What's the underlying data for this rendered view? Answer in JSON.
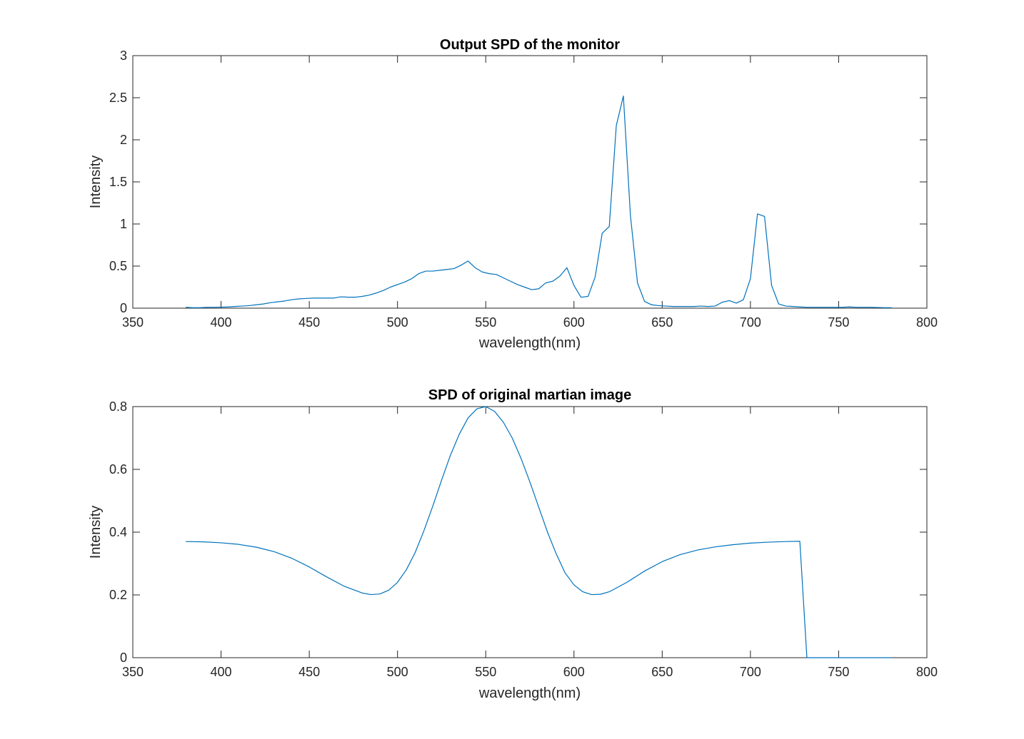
{
  "colors": {
    "series": "#0072BD",
    "axes": "#262626"
  },
  "chart_data": [
    {
      "type": "line",
      "title": "Output SPD of the monitor",
      "xlabel": "wavelength(nm)",
      "ylabel": "Intensity",
      "xlim": [
        350,
        800
      ],
      "ylim": [
        0,
        3
      ],
      "xticks": [
        350,
        400,
        450,
        500,
        550,
        600,
        650,
        700,
        750,
        800
      ],
      "yticks": [
        0,
        0.5,
        1,
        1.5,
        2,
        2.5,
        3
      ],
      "xtick_labels": [
        "350",
        "400",
        "450",
        "500",
        "550",
        "600",
        "650",
        "700",
        "750",
        "800"
      ],
      "ytick_labels": [
        "0",
        "0.5",
        "1",
        "1.5",
        "2",
        "2.5",
        "3"
      ],
      "grid": false,
      "series": [
        {
          "x": [
            380,
            384,
            388,
            392,
            396,
            400,
            404,
            408,
            412,
            416,
            420,
            424,
            428,
            432,
            436,
            440,
            444,
            448,
            452,
            456,
            460,
            464,
            468,
            472,
            476,
            480,
            484,
            488,
            492,
            496,
            500,
            504,
            508,
            512,
            516,
            520,
            524,
            528,
            532,
            536,
            540,
            544,
            548,
            552,
            556,
            560,
            564,
            568,
            572,
            576,
            580,
            584,
            588,
            592,
            596,
            600,
            604,
            608,
            612,
            616,
            620,
            624,
            628,
            632,
            636,
            640,
            644,
            648,
            652,
            656,
            660,
            664,
            668,
            672,
            676,
            680,
            684,
            688,
            692,
            696,
            700,
            704,
            708,
            712,
            716,
            720,
            724,
            728,
            732,
            736,
            740,
            744,
            748,
            752,
            756,
            760,
            764,
            768,
            772,
            776,
            780
          ],
          "y": [
            0.01,
            0.005,
            0.005,
            0.01,
            0.01,
            0.012,
            0.015,
            0.02,
            0.025,
            0.03,
            0.04,
            0.05,
            0.065,
            0.075,
            0.085,
            0.1,
            0.11,
            0.115,
            0.12,
            0.12,
            0.12,
            0.12,
            0.135,
            0.13,
            0.13,
            0.14,
            0.155,
            0.18,
            0.21,
            0.25,
            0.28,
            0.31,
            0.35,
            0.41,
            0.44,
            0.44,
            0.45,
            0.46,
            0.47,
            0.51,
            0.56,
            0.48,
            0.43,
            0.41,
            0.4,
            0.36,
            0.32,
            0.28,
            0.25,
            0.22,
            0.23,
            0.3,
            0.32,
            0.38,
            0.48,
            0.27,
            0.13,
            0.14,
            0.37,
            0.89,
            0.97,
            2.17,
            2.52,
            1.1,
            0.3,
            0.08,
            0.04,
            0.03,
            0.025,
            0.02,
            0.02,
            0.02,
            0.02,
            0.025,
            0.02,
            0.025,
            0.07,
            0.09,
            0.06,
            0.1,
            0.35,
            1.12,
            1.09,
            0.27,
            0.05,
            0.025,
            0.02,
            0.015,
            0.01,
            0.01,
            0.01,
            0.01,
            0.01,
            0.01,
            0.015,
            0.01,
            0.01,
            0.01,
            0.008,
            0.005,
            0.005
          ]
        }
      ]
    },
    {
      "type": "line",
      "title": "SPD of original martian image",
      "xlabel": "wavelength(nm)",
      "ylabel": "Intensity",
      "xlim": [
        350,
        800
      ],
      "ylim": [
        0,
        0.8
      ],
      "xticks": [
        350,
        400,
        450,
        500,
        550,
        600,
        650,
        700,
        750,
        800
      ],
      "yticks": [
        0,
        0.2,
        0.4,
        0.6,
        0.8
      ],
      "xtick_labels": [
        "350",
        "400",
        "450",
        "500",
        "550",
        "600",
        "650",
        "700",
        "750",
        "800"
      ],
      "ytick_labels": [
        "0",
        "0.2",
        "0.4",
        "0.6",
        "0.8"
      ],
      "grid": false,
      "series": [
        {
          "x": [
            380,
            390,
            400,
            410,
            420,
            430,
            440,
            450,
            460,
            470,
            480,
            485,
            490,
            495,
            500,
            505,
            510,
            515,
            520,
            525,
            530,
            535,
            540,
            545,
            550,
            555,
            560,
            565,
            570,
            575,
            580,
            585,
            590,
            595,
            600,
            605,
            610,
            615,
            620,
            630,
            640,
            650,
            660,
            670,
            680,
            690,
            700,
            710,
            720,
            728,
            732,
            740,
            750,
            760,
            770,
            780
          ],
          "y": [
            0.37,
            0.369,
            0.366,
            0.361,
            0.352,
            0.338,
            0.317,
            0.289,
            0.257,
            0.227,
            0.206,
            0.201,
            0.203,
            0.215,
            0.24,
            0.28,
            0.335,
            0.405,
            0.483,
            0.566,
            0.645,
            0.712,
            0.764,
            0.793,
            0.8,
            0.785,
            0.75,
            0.7,
            0.635,
            0.56,
            0.48,
            0.4,
            0.33,
            0.27,
            0.232,
            0.21,
            0.201,
            0.202,
            0.21,
            0.24,
            0.276,
            0.306,
            0.328,
            0.343,
            0.353,
            0.36,
            0.365,
            0.368,
            0.37,
            0.371,
            0.0,
            0.0,
            0.0,
            0.0,
            0.0,
            0.0
          ]
        }
      ]
    }
  ]
}
